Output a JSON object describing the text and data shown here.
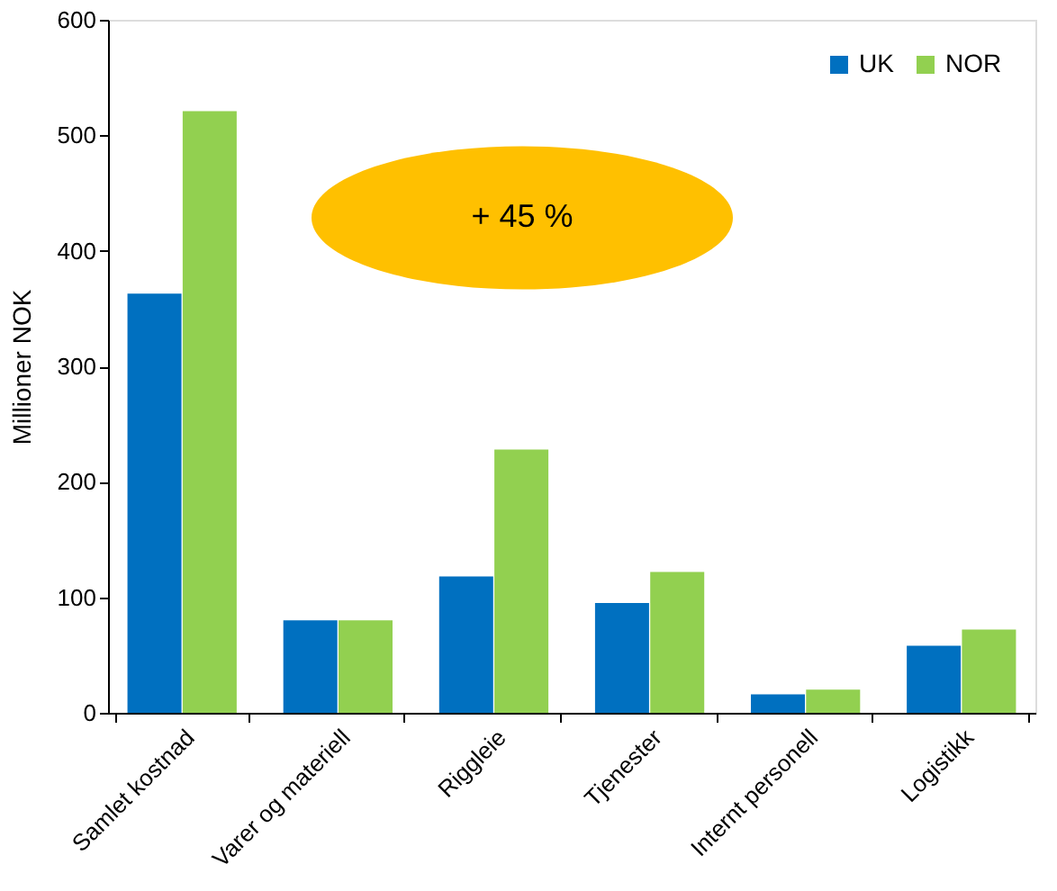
{
  "chart_data": {
    "type": "bar",
    "ylabel": "Millioner NOK",
    "categories": [
      "Samlet kostnad",
      "Varer og materiell",
      "Riggleie",
      "Tjenester",
      "Internt personell",
      "Logistikk"
    ],
    "series": [
      {
        "name": "UK",
        "color": "#0070c0",
        "values": [
          363,
          80,
          118,
          95,
          16,
          58
        ]
      },
      {
        "name": "NOR",
        "color": "#92d050",
        "values": [
          521,
          80,
          228,
          122,
          20,
          72
        ]
      }
    ],
    "ylim": [
      0,
      600
    ],
    "yticks": [
      0,
      100,
      200,
      300,
      400,
      500,
      600
    ],
    "grid": false,
    "legend": "top right",
    "annotations": [
      "+ 45 %"
    ]
  }
}
